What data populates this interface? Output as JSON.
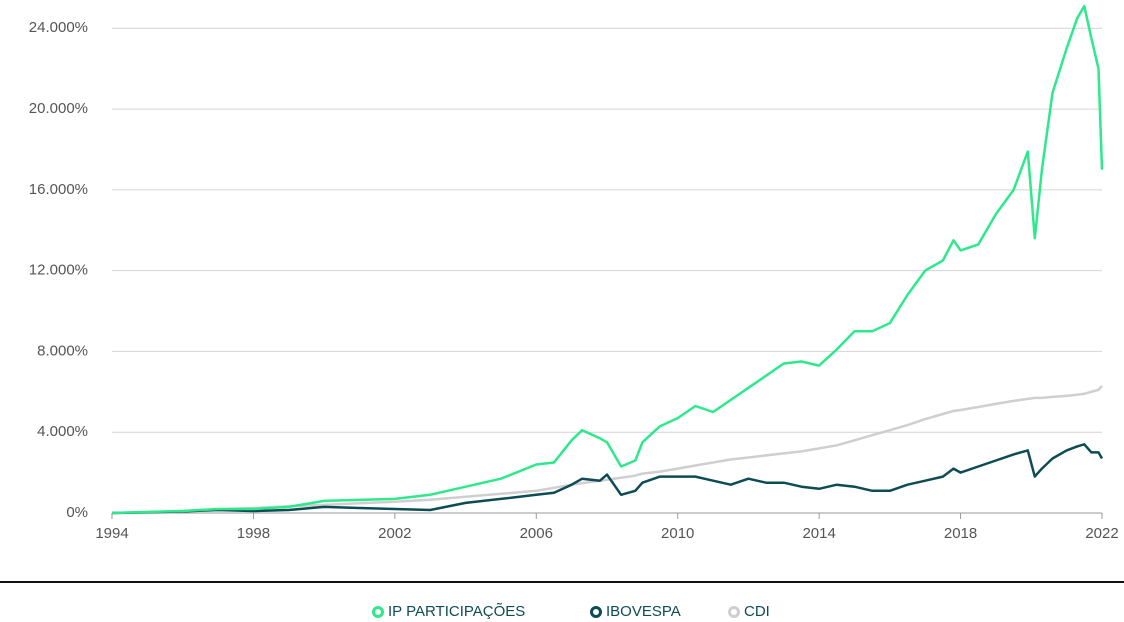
{
  "chart_data": {
    "type": "line",
    "x": [
      1994,
      1995,
      1996,
      1997,
      1998,
      1999,
      2000,
      2001,
      2002,
      2003,
      2004,
      2005,
      2006,
      2006.5,
      2007,
      2007.3,
      2007.8,
      2008,
      2008.4,
      2008.8,
      2009,
      2009.5,
      2010,
      2010.5,
      2011,
      2011.5,
      2012,
      2012.5,
      2013,
      2013.5,
      2014,
      2014.5,
      2015,
      2015.5,
      2016,
      2016.5,
      2017,
      2017.5,
      2017.8,
      2018,
      2018.5,
      2019,
      2019.5,
      2019.9,
      2020.1,
      2020.3,
      2020.6,
      2021,
      2021.3,
      2021.5,
      2021.7,
      2021.9,
      2022
    ],
    "series": [
      {
        "name": "IP PARTICIPAÇÕES",
        "color": "#2ee88c",
        "values": [
          0,
          50,
          100,
          200,
          200,
          300,
          600,
          650,
          700,
          900,
          1300,
          1700,
          2400,
          2500,
          3600,
          4100,
          3700,
          3500,
          2300,
          2600,
          3500,
          4300,
          4700,
          5300,
          5000,
          5600,
          6200,
          6800,
          7400,
          7500,
          7300,
          8100,
          9000,
          9000,
          9400,
          10800,
          12000,
          12500,
          13500,
          13000,
          13300,
          14800,
          16000,
          17900,
          13600,
          17000,
          20800,
          23000,
          24500,
          25100,
          23500,
          22000,
          17000
        ]
      },
      {
        "name": "IBOVESPA",
        "color": "#0d4b55",
        "values": [
          0,
          30,
          80,
          150,
          100,
          150,
          300,
          250,
          200,
          150,
          500,
          700,
          900,
          1000,
          1400,
          1700,
          1600,
          1900,
          900,
          1100,
          1500,
          1800,
          1800,
          1800,
          1600,
          1400,
          1700,
          1500,
          1500,
          1300,
          1200,
          1400,
          1300,
          1100,
          1100,
          1400,
          1600,
          1800,
          2200,
          2000,
          2300,
          2600,
          2900,
          3100,
          1800,
          2200,
          2700,
          3100,
          3300,
          3400,
          3000,
          3000,
          2700
        ]
      },
      {
        "name": "CDI",
        "color": "#cfcfcf",
        "values": [
          0,
          50,
          100,
          180,
          250,
          330,
          400,
          480,
          560,
          660,
          800,
          950,
          1100,
          1250,
          1400,
          1480,
          1600,
          1650,
          1750,
          1850,
          1950,
          2050,
          2200,
          2350,
          2500,
          2650,
          2750,
          2850,
          2950,
          3050,
          3200,
          3350,
          3600,
          3850,
          4100,
          4350,
          4650,
          4900,
          5050,
          5100,
          5250,
          5400,
          5550,
          5650,
          5700,
          5700,
          5750,
          5800,
          5850,
          5900,
          6000,
          6100,
          6300
        ]
      }
    ],
    "xlim": [
      1994,
      2022
    ],
    "xticks": [
      1994,
      1998,
      2002,
      2006,
      2010,
      2014,
      2018,
      2022
    ],
    "ylim": [
      0,
      25400
    ],
    "yticks": [
      {
        "value": 0,
        "label": "0%"
      },
      {
        "value": 4000,
        "label": "4.000%"
      },
      {
        "value": 8000,
        "label": "8.000%"
      },
      {
        "value": 12000,
        "label": "12.000%"
      },
      {
        "value": 16000,
        "label": "16.000%"
      },
      {
        "value": 20000,
        "label": "20.000%"
      },
      {
        "value": 24000,
        "label": "24.000%"
      }
    ],
    "grid": true,
    "legend": "bottom"
  }
}
